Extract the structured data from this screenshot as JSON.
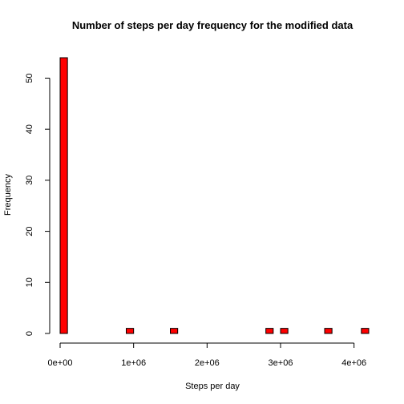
{
  "chart_data": {
    "type": "bar",
    "title": "Number of steps per day frequency for the modified data",
    "xlabel": "Steps per day",
    "ylabel": "Frequency",
    "bar_color": "#ff0000",
    "outline_color": "#000000",
    "xlim": [
      0,
      4200000
    ],
    "ylim": [
      0,
      54
    ],
    "x_ticks": [
      0,
      1000000,
      2000000,
      3000000,
      4000000
    ],
    "x_tick_labels": [
      "0e+00",
      "1e+06",
      "2e+06",
      "3e+06",
      "4e+06"
    ],
    "y_ticks": [
      0,
      10,
      20,
      30,
      40,
      50
    ],
    "y_tick_labels": [
      "0",
      "10",
      "20",
      "30",
      "40",
      "50"
    ],
    "bins": [
      {
        "x0": 0,
        "x1": 100000,
        "count": 54
      },
      {
        "x0": 900000,
        "x1": 1000000,
        "count": 1
      },
      {
        "x0": 1500000,
        "x1": 1600000,
        "count": 1
      },
      {
        "x0": 2800000,
        "x1": 2900000,
        "count": 1
      },
      {
        "x0": 3000000,
        "x1": 3100000,
        "count": 1
      },
      {
        "x0": 3600000,
        "x1": 3700000,
        "count": 1
      },
      {
        "x0": 4100000,
        "x1": 4200000,
        "count": 1
      }
    ]
  }
}
